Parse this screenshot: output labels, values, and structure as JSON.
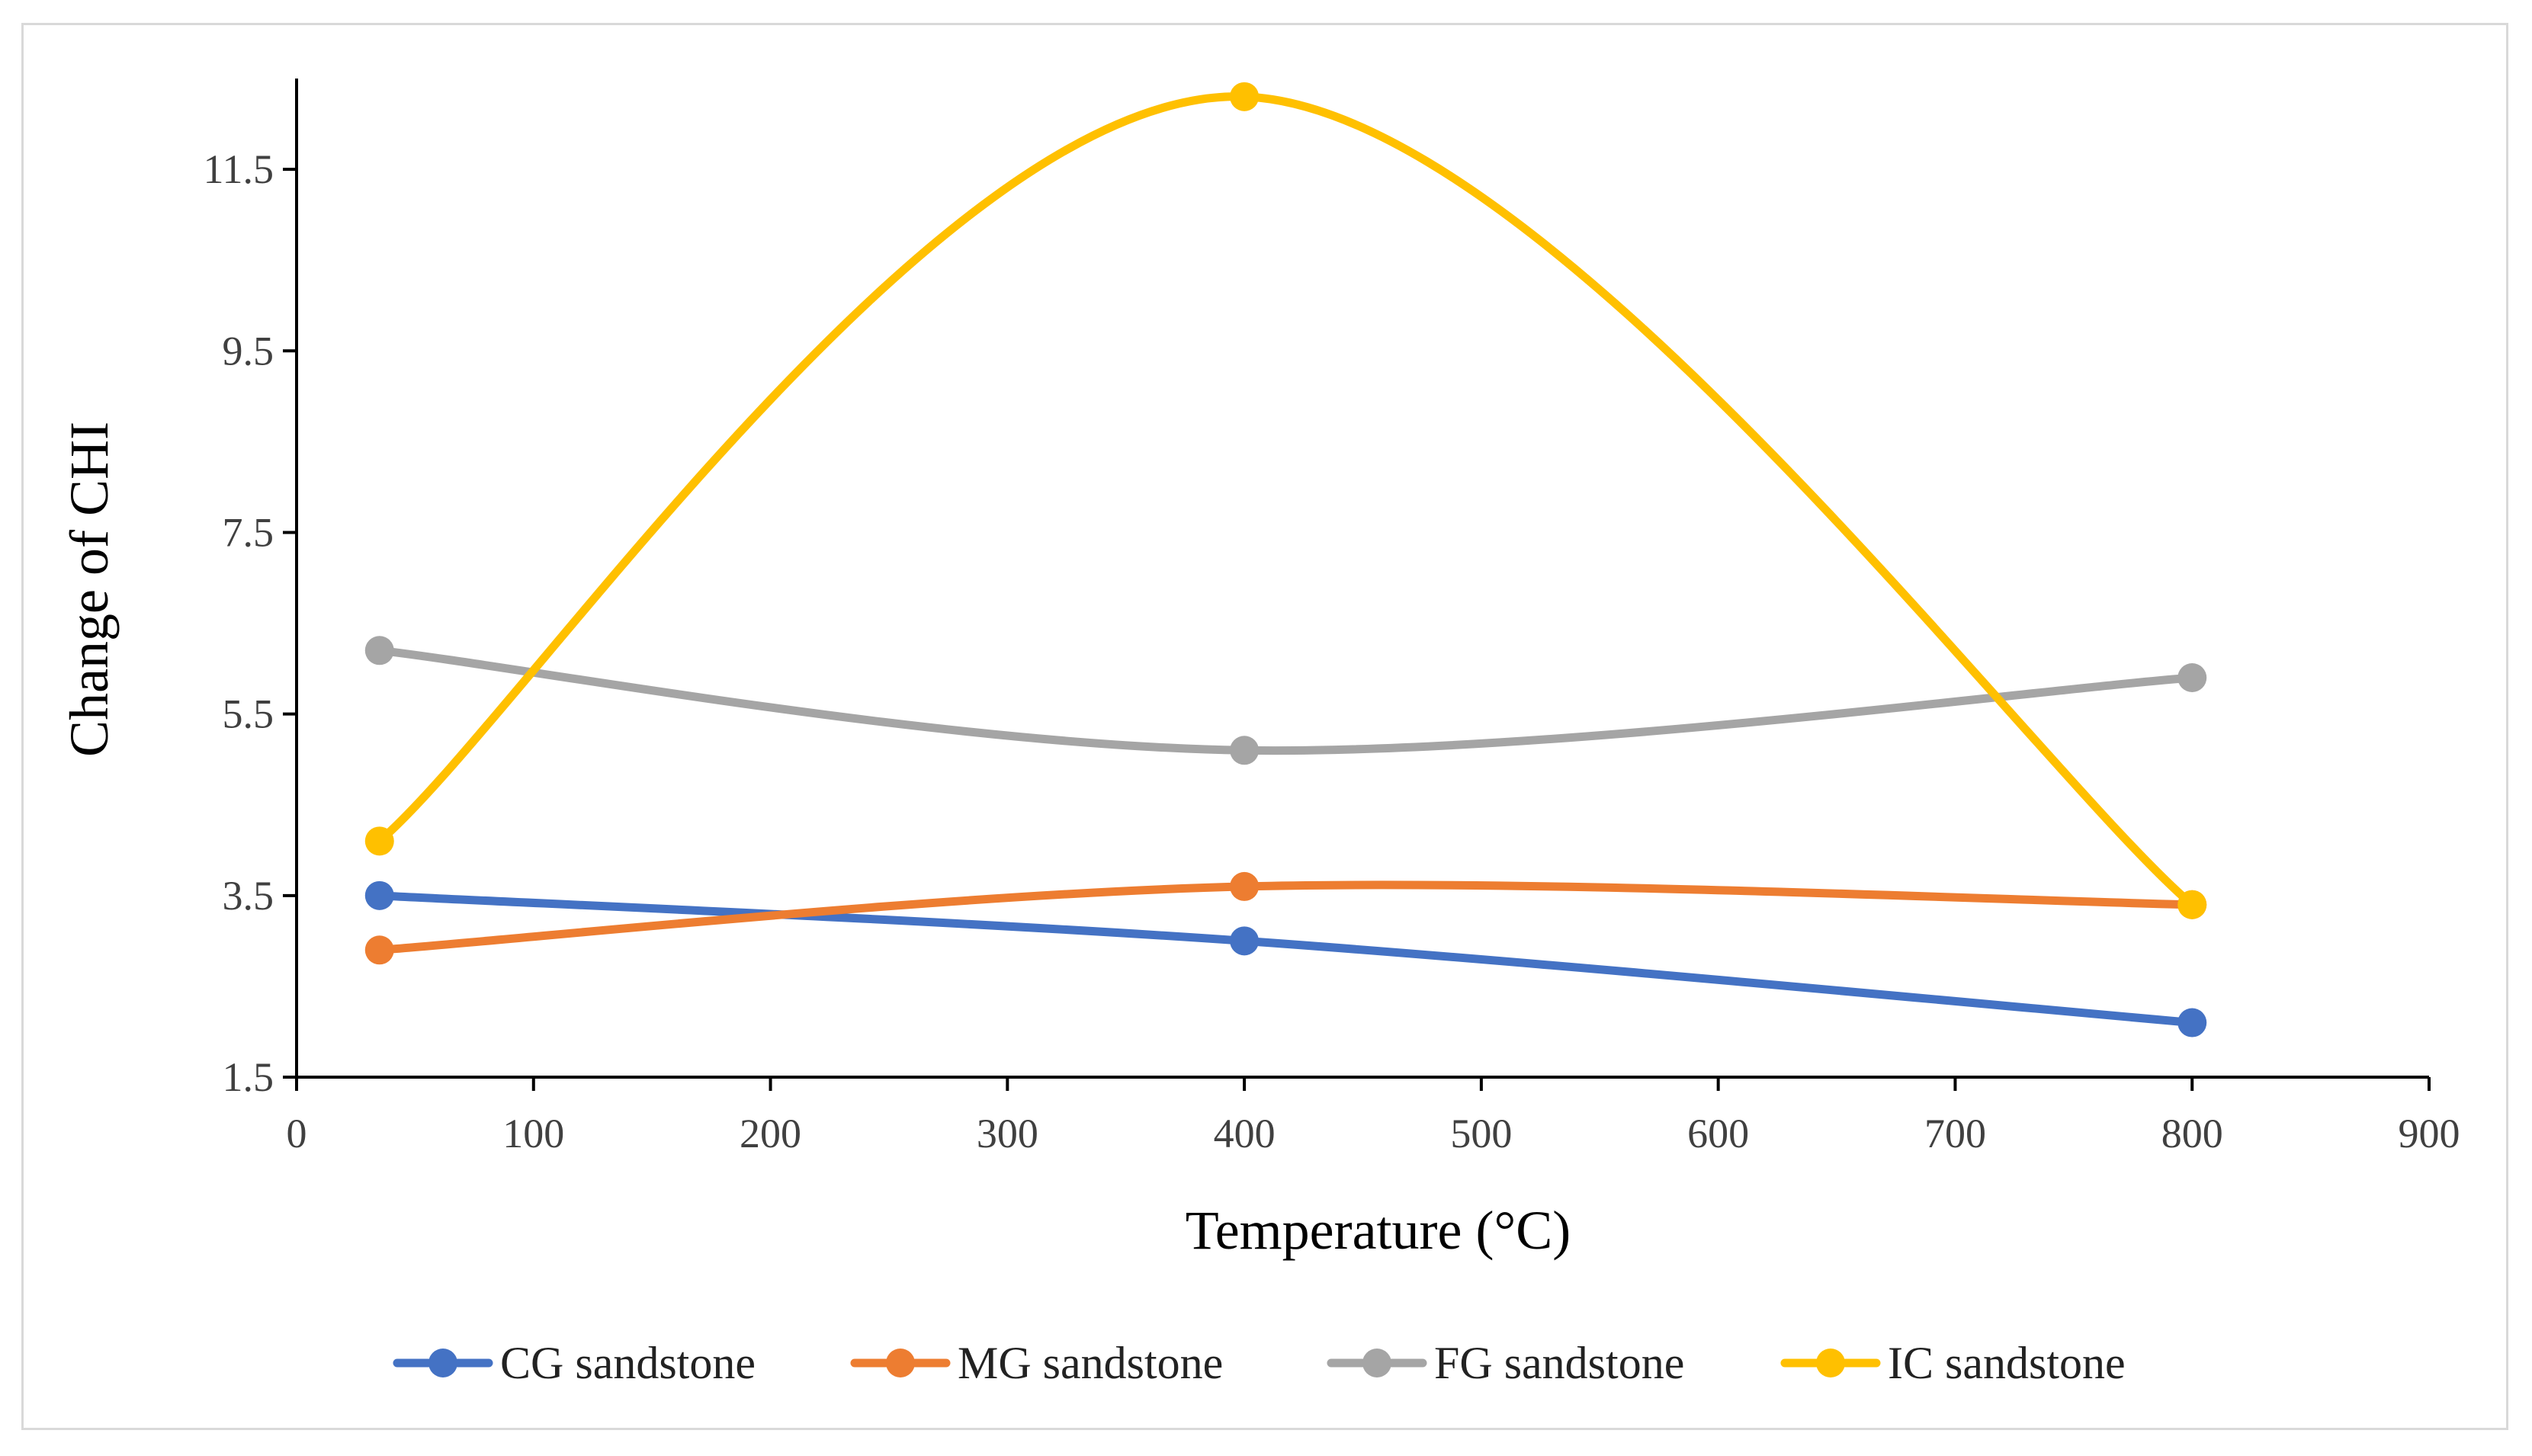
{
  "chart_data": {
    "type": "line",
    "title": "",
    "xlabel": "Temperature (°C)",
    "ylabel": "Change of CHI",
    "xlim": [
      0,
      900
    ],
    "ylim": [
      1.5,
      12.5
    ],
    "xticks": [
      0,
      100,
      200,
      300,
      400,
      500,
      600,
      700,
      800,
      900
    ],
    "xtick_labels": [
      "0",
      "100",
      "200",
      "300",
      "400",
      "500",
      "600",
      "700",
      "800",
      "900"
    ],
    "yticks": [
      1.5,
      3.5,
      5.5,
      7.5,
      9.5,
      11.5
    ],
    "ytick_labels": [
      "1.5",
      "3.5",
      "5.5",
      "7.5",
      "9.5",
      "11.5"
    ],
    "grid": false,
    "smooth": true,
    "legend_position": "bottom",
    "x": [
      35,
      400,
      800
    ],
    "series": [
      {
        "name": "CG sandstone",
        "color": "#4472C4",
        "values": [
          3.5,
          3.0,
          2.1
        ]
      },
      {
        "name": "MG sandstone",
        "color": "#ED7D31",
        "values": [
          2.9,
          3.6,
          3.4
        ]
      },
      {
        "name": "FG sandstone",
        "color": "#A5A5A5",
        "values": [
          6.2,
          5.1,
          5.9
        ]
      },
      {
        "name": "IC sandstone",
        "color": "#FFC000",
        "values": [
          4.1,
          12.3,
          3.4
        ]
      }
    ]
  }
}
